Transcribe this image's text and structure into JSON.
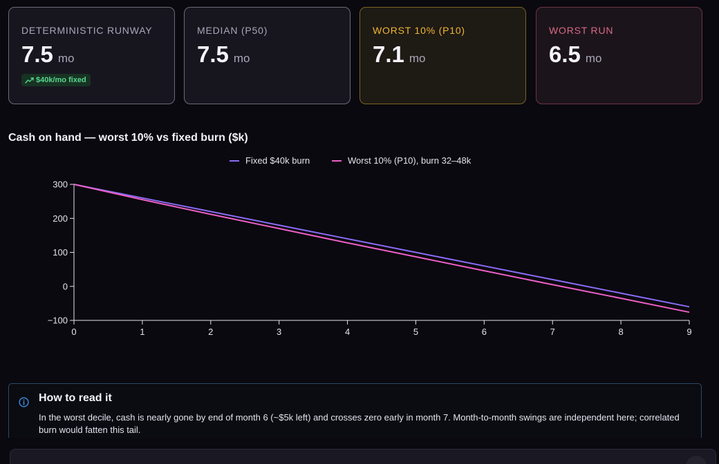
{
  "cards": [
    {
      "label": "DETERMINISTIC RUNWAY",
      "value": "7.5",
      "unit": "mo",
      "badge": "$40k/mo fixed",
      "badge_icon": "trend-icon"
    },
    {
      "label": "MEDIAN (P50)",
      "value": "7.5",
      "unit": "mo"
    },
    {
      "label": "WORST 10% (P10)",
      "value": "7.1",
      "unit": "mo"
    },
    {
      "label": "WORST RUN",
      "value": "6.5",
      "unit": "mo"
    }
  ],
  "chart": {
    "title": "Cash on hand — worst 10% vs fixed burn ($k)"
  },
  "chart_data": {
    "type": "line",
    "title": "Cash on hand — worst 10% vs fixed burn ($k)",
    "x": [
      0,
      1,
      2,
      3,
      4,
      5,
      6,
      7,
      8,
      9
    ],
    "x_ticks": [
      "0",
      "1",
      "2",
      "3",
      "4",
      "5",
      "6",
      "7",
      "8",
      "9"
    ],
    "y_ticks": [
      300,
      200,
      100,
      0,
      -100
    ],
    "y_tick_labels": [
      "300",
      "200",
      "100",
      "0",
      "−100"
    ],
    "xlim": [
      0,
      9
    ],
    "ylim": [
      -100,
      300
    ],
    "grid": false,
    "legend": "top-center",
    "series": [
      {
        "name": "Fixed $40k burn",
        "color": "#8b6cf7",
        "values": [
          300,
          260,
          220,
          180,
          140,
          100,
          60,
          20,
          -20,
          -60
        ]
      },
      {
        "name": "Worst 10% (P10), burn 32–48k",
        "color": "#ec5fc6",
        "values": [
          300,
          255,
          212,
          170,
          128,
          87,
          46,
          5,
          -35,
          -76
        ]
      }
    ]
  },
  "info": {
    "title": "How to read it",
    "body": "In the worst decile, cash is nearly gone by end of month 6 (~$5k left) and crosses zero early in month 7. Month-to-month swings are independent here; correlated burn would fatten this tail.",
    "icon": "info-icon"
  }
}
